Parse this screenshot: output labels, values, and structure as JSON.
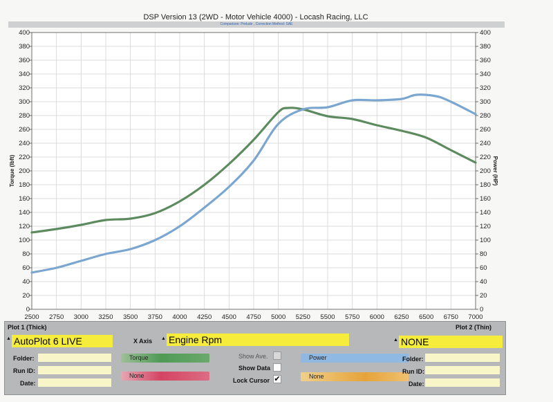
{
  "header": {
    "title": "DSP Version 13 (2WD - Motor Vehicle 4000) - Locash Racing, LLC",
    "subtitle": "Comparison: Prelude ,  Correction Method: SAE"
  },
  "chart_data": {
    "type": "line",
    "xlabel": "",
    "ylabel": "Torque (lbft)",
    "ylabel_right": "Power (HP)",
    "xlim": [
      2500,
      7000
    ],
    "ylim": [
      0,
      400
    ],
    "ylim_right": [
      0,
      400
    ],
    "x_ticks": [
      2500,
      2750,
      3000,
      3250,
      3500,
      3750,
      4000,
      4250,
      4500,
      4750,
      5000,
      5250,
      5500,
      5750,
      6000,
      6250,
      6500,
      6750,
      7000
    ],
    "y_ticks": [
      0,
      20,
      40,
      60,
      80,
      100,
      120,
      140,
      160,
      180,
      200,
      220,
      240,
      260,
      280,
      300,
      320,
      340,
      360,
      380,
      400
    ],
    "grid": true,
    "colors": {
      "Torque": "#5d8a5e",
      "Power": "#7aa6cf"
    },
    "series": [
      {
        "name": "Torque",
        "x": [
          2500,
          2750,
          3000,
          3250,
          3500,
          3750,
          4000,
          4250,
          4500,
          4750,
          5000,
          5100,
          5250,
          5500,
          5750,
          6000,
          6250,
          6500,
          6750,
          7000
        ],
        "y": [
          111,
          116,
          122,
          129,
          131,
          139,
          156,
          180,
          210,
          245,
          285,
          291,
          289,
          279,
          275,
          266,
          258,
          248,
          230,
          212
        ]
      },
      {
        "name": "Power",
        "x": [
          2500,
          2750,
          3000,
          3250,
          3500,
          3750,
          4000,
          4250,
          4500,
          4750,
          5000,
          5250,
          5500,
          5750,
          6000,
          6250,
          6400,
          6600,
          6750,
          7000
        ],
        "y": [
          53,
          60,
          70,
          80,
          87,
          100,
          120,
          147,
          177,
          215,
          268,
          289,
          292,
          302,
          302,
          304,
          310,
          308,
          300,
          282
        ]
      }
    ]
  },
  "panel": {
    "plot1_label": "Plot 1 (Thick)",
    "plot2_label": "Plot 2 (Thin)",
    "plot1_select": "AutoPlot 6 LIVE",
    "xaxis_label": "X Axis",
    "xaxis_select": "Engine Rpm",
    "plot2_select": "NONE",
    "folder_label": "Folder:",
    "runid_label": "Run ID:",
    "date_label": "Date:",
    "trace1": "Torque",
    "trace2": "None",
    "trace3": "Power",
    "trace4": "None",
    "show_ave": "Show Ave.",
    "show_data": "Show Data",
    "lock_cursor": "Lock Cursor",
    "lock_mark": "✔",
    "spin": "▲▼"
  }
}
